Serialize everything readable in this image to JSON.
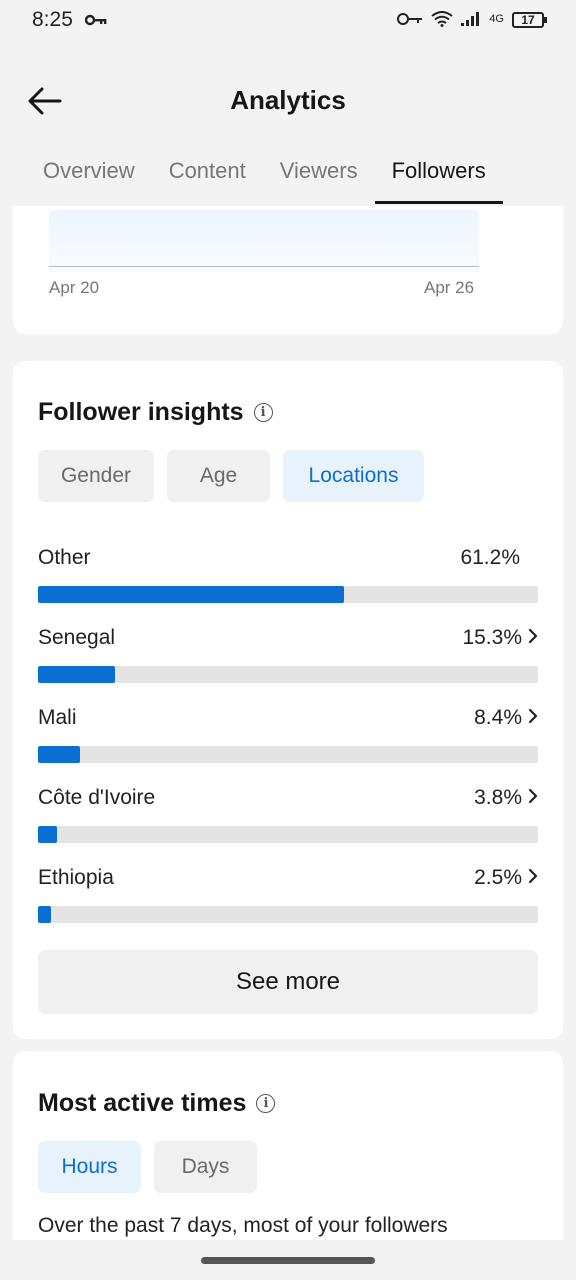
{
  "status_bar": {
    "time": "8:25",
    "network": "4G",
    "battery": "17"
  },
  "header": {
    "title": "Analytics"
  },
  "tabs": [
    {
      "label": "Overview",
      "active": false
    },
    {
      "label": "Content",
      "active": false
    },
    {
      "label": "Viewers",
      "active": false
    },
    {
      "label": "Followers",
      "active": true
    }
  ],
  "chart": {
    "x_start": "Apr 20",
    "x_end": "Apr 26"
  },
  "insights": {
    "title": "Follower insights",
    "filters": [
      {
        "label": "Gender",
        "active": false
      },
      {
        "label": "Age",
        "active": false
      },
      {
        "label": "Locations",
        "active": true
      }
    ],
    "locations": [
      {
        "name": "Other",
        "value": "61.2%",
        "percent": 61.2,
        "chevron": false
      },
      {
        "name": "Senegal",
        "value": "15.3%",
        "percent": 15.3,
        "chevron": true
      },
      {
        "name": "Mali",
        "value": "8.4%",
        "percent": 8.4,
        "chevron": true
      },
      {
        "name": "Côte d'Ivoire",
        "value": "3.8%",
        "percent": 3.8,
        "chevron": true
      },
      {
        "name": "Ethiopia",
        "value": "2.5%",
        "percent": 2.5,
        "chevron": true
      }
    ],
    "see_more": "See more"
  },
  "active_times": {
    "title": "Most active times",
    "filters": [
      {
        "label": "Hours",
        "active": true
      },
      {
        "label": "Days",
        "active": false
      }
    ],
    "description": "Over the past 7 days, most of your followers"
  },
  "colors": {
    "accent": "#0a6fd1",
    "accent_bg": "#e7f2fd",
    "track": "#e4e4e4"
  }
}
